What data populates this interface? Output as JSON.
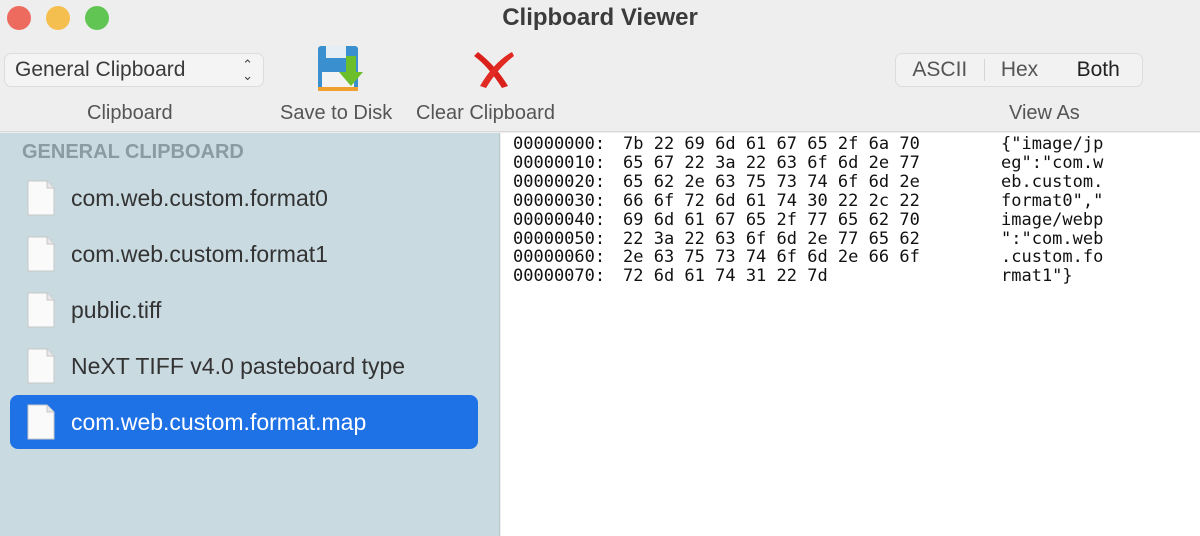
{
  "window": {
    "title": "Clipboard Viewer",
    "lights": [
      "#ed6a5e",
      "#f5bf4f",
      "#61c554"
    ]
  },
  "toolbar": {
    "clipboard_select": "General Clipboard",
    "clipboard_label": "Clipboard",
    "save_label": "Save to Disk",
    "clear_label": "Clear Clipboard",
    "view_as_label": "View As",
    "view_options": [
      "ASCII",
      "Hex",
      "Both"
    ],
    "view_selected": "Both"
  },
  "sidebar": {
    "heading": "GENERAL CLIPBOARD",
    "items": [
      {
        "label": "com.web.custom.format0"
      },
      {
        "label": "com.web.custom.format1"
      },
      {
        "label": "public.tiff"
      },
      {
        "label": "NeXT TIFF v4.0 pasteboard type"
      },
      {
        "label": "com.web.custom.format.map",
        "selected": true
      }
    ]
  },
  "hex": {
    "rows": [
      {
        "offset": "00000000:",
        "bytes": "7b 22 69 6d 61 67 65 2f 6a 70",
        "ascii": "{\"image/jp"
      },
      {
        "offset": "00000010:",
        "bytes": "65 67 22 3a 22 63 6f 6d 2e 77",
        "ascii": "eg\":\"com.w"
      },
      {
        "offset": "00000020:",
        "bytes": "65 62 2e 63 75 73 74 6f 6d 2e",
        "ascii": "eb.custom."
      },
      {
        "offset": "00000030:",
        "bytes": "66 6f 72 6d 61 74 30 22 2c 22",
        "ascii": "format0\",\""
      },
      {
        "offset": "00000040:",
        "bytes": "69 6d 61 67 65 2f 77 65 62 70",
        "ascii": "image/webp"
      },
      {
        "offset": "00000050:",
        "bytes": "22 3a 22 63 6f 6d 2e 77 65 62",
        "ascii": "\":\"com.web"
      },
      {
        "offset": "00000060:",
        "bytes": "2e 63 75 73 74 6f 6d 2e 66 6f",
        "ascii": ".custom.fo"
      },
      {
        "offset": "00000070:",
        "bytes": "72 6d 61 74 31 22 7d",
        "ascii": "rmat1\"}"
      }
    ]
  },
  "colors": {
    "accent": "#1f72e6",
    "sidebar_bg": "#c9dae1"
  }
}
